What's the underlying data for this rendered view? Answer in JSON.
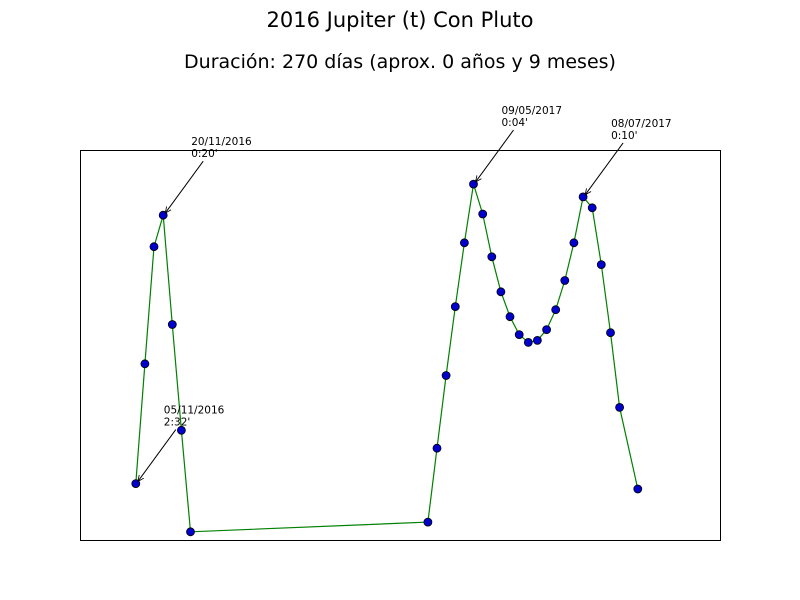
{
  "chart_data": {
    "type": "line",
    "title": "2016 Jupiter (t) Con Pluto",
    "subtitle": "Duración: 270 días (aprox. 0 años y 9 meses)",
    "xlabel": "",
    "ylabel": "",
    "grid": false,
    "x_axis_ticks": false,
    "y_axis_ticks": false,
    "xlim": [
      0,
      70
    ],
    "ylim": [
      0,
      100
    ],
    "colors": {
      "line": "#008000",
      "marker_face": "#0000cc",
      "marker_edge": "#000000"
    },
    "series": [
      {
        "values": [
          {
            "x": 6,
            "y": 14.5
          },
          {
            "x": 7,
            "y": 45.3
          },
          {
            "x": 8,
            "y": 75.4
          },
          {
            "x": 9,
            "y": 83.5
          },
          {
            "x": 10,
            "y": 55.4
          },
          {
            "x": 11,
            "y": 28.2
          },
          {
            "x": 12,
            "y": 2.1
          },
          {
            "x": 38,
            "y": 4.6
          },
          {
            "x": 39,
            "y": 23.6
          },
          {
            "x": 40,
            "y": 42.3
          },
          {
            "x": 41,
            "y": 60.0
          },
          {
            "x": 42,
            "y": 76.4
          },
          {
            "x": 43,
            "y": 91.5
          },
          {
            "x": 44,
            "y": 83.8
          },
          {
            "x": 45,
            "y": 72.8
          },
          {
            "x": 46,
            "y": 63.8
          },
          {
            "x": 47,
            "y": 57.4
          },
          {
            "x": 48,
            "y": 52.8
          },
          {
            "x": 49,
            "y": 50.8
          },
          {
            "x": 50,
            "y": 51.3
          },
          {
            "x": 51,
            "y": 54.1
          },
          {
            "x": 52,
            "y": 59.2
          },
          {
            "x": 53,
            "y": 66.7
          },
          {
            "x": 54,
            "y": 76.4
          },
          {
            "x": 55,
            "y": 88.2
          },
          {
            "x": 56,
            "y": 85.4
          },
          {
            "x": 57,
            "y": 70.8
          },
          {
            "x": 58,
            "y": 53.3
          },
          {
            "x": 59,
            "y": 34.1
          },
          {
            "x": 61,
            "y": 13.1
          }
        ]
      }
    ],
    "annotations": [
      {
        "point_index": 0,
        "line1": "05/11/2016",
        "line2": "2:32'"
      },
      {
        "point_index": 3,
        "line1": "20/11/2016",
        "line2": "0:20'"
      },
      {
        "point_index": 12,
        "line1": "09/05/2017",
        "line2": "0:04'"
      },
      {
        "point_index": 24,
        "line1": "08/07/2017",
        "line2": "0:10'"
      }
    ]
  }
}
